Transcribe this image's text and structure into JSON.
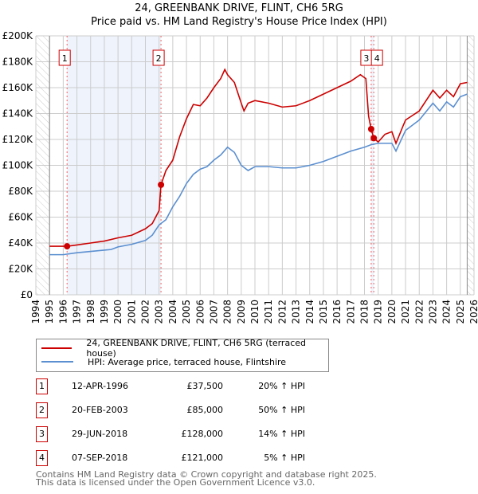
{
  "chart_data": {
    "type": "line",
    "title": "24, GREENBANK DRIVE, FLINT, CH6 5RG",
    "subtitle": "Price paid vs. HM Land Registry's House Price Index (HPI)",
    "xlim": [
      1994,
      2026
    ],
    "ylim": [
      0,
      200000
    ],
    "x_ticks": [
      "1994",
      "1995",
      "1996",
      "1997",
      "1998",
      "1999",
      "2000",
      "2001",
      "2002",
      "2003",
      "2004",
      "2005",
      "2006",
      "2007",
      "2008",
      "2009",
      "2010",
      "2011",
      "2012",
      "2013",
      "2014",
      "2015",
      "2016",
      "2017",
      "2018",
      "2019",
      "2020",
      "2021",
      "2022",
      "2023",
      "2024",
      "2025",
      "2026"
    ],
    "y_ticks": [
      "£0",
      "£20K",
      "£40K",
      "£60K",
      "£80K",
      "£100K",
      "£120K",
      "£140K",
      "£160K",
      "£180K",
      "£200K"
    ],
    "grid": true,
    "series": [
      {
        "name": "24, GREENBANK DRIVE, FLINT, CH6 5RG (terraced house)",
        "color": "#cc0000",
        "x": [
          1995,
          1996.28,
          1997,
          1998,
          1999,
          2000,
          2001,
          2002,
          2002.5,
          2003,
          2003.14,
          2003.5,
          2004,
          2004.5,
          2005,
          2005.5,
          2006,
          2006.5,
          2007,
          2007.5,
          2007.8,
          2008,
          2008.5,
          2009,
          2009.2,
          2009.5,
          2010,
          2011,
          2012,
          2013,
          2014,
          2015,
          2016,
          2017,
          2017.7,
          2018.1,
          2018.3,
          2018.49,
          2018.68,
          2019,
          2019.5,
          2020,
          2020.3,
          2020.8,
          2021,
          2022,
          2023,
          2023.5,
          2024,
          2024.5,
          2025,
          2025.5
        ],
        "y": [
          37500,
          37500,
          38500,
          40000,
          41500,
          44000,
          46000,
          51000,
          55000,
          65000,
          85000,
          96000,
          104000,
          122000,
          136000,
          147000,
          146000,
          152000,
          160000,
          167000,
          174000,
          170000,
          164000,
          148000,
          142000,
          148000,
          150000,
          148000,
          145000,
          146000,
          150000,
          155000,
          160000,
          165000,
          170000,
          167000,
          138000,
          128000,
          121000,
          118000,
          124000,
          126000,
          117000,
          130000,
          135000,
          142000,
          158000,
          152000,
          158000,
          153000,
          163000,
          164000
        ]
      },
      {
        "name": "HPI: Average price, terraced house, Flintshire",
        "color": "#5b8fd0",
        "x": [
          1995,
          1996,
          1997,
          1998,
          1999,
          1999.5,
          2000,
          2001,
          2002,
          2002.5,
          2003,
          2003.5,
          2004,
          2004.5,
          2005,
          2005.5,
          2006,
          2006.5,
          2007,
          2007.5,
          2008,
          2008.5,
          2009,
          2009.5,
          2010,
          2011,
          2012,
          2013,
          2014,
          2015,
          2016,
          2017,
          2018,
          2018.5,
          2019,
          2020,
          2020.3,
          2021,
          2022,
          2023,
          2023.5,
          2024,
          2024.5,
          2025,
          2025.5
        ],
        "y": [
          31000,
          31000,
          32500,
          33500,
          34500,
          35000,
          37000,
          39000,
          42000,
          46000,
          54000,
          58000,
          68000,
          76000,
          86000,
          93000,
          97000,
          99000,
          104000,
          108000,
          114000,
          110000,
          100000,
          96000,
          99000,
          99000,
          98000,
          98000,
          100000,
          103000,
          107000,
          111000,
          114000,
          116000,
          117000,
          117000,
          111000,
          127000,
          135000,
          148000,
          142000,
          149000,
          145000,
          153000,
          155000
        ]
      }
    ],
    "sales": [
      {
        "label": "1",
        "date": "12-APR-1996",
        "price": "£37,500",
        "hpi": "20% ↑ HPI",
        "x": 1996.28,
        "y": 37500
      },
      {
        "label": "2",
        "date": "20-FEB-2003",
        "price": "£85,000",
        "hpi": "50% ↑ HPI",
        "x": 2003.14,
        "y": 85000
      },
      {
        "label": "3",
        "date": "29-JUN-2018",
        "price": "£128,000",
        "hpi": "14% ↑ HPI",
        "x": 2018.49,
        "y": 128000
      },
      {
        "label": "4",
        "date": "07-SEP-2018",
        "price": "£121,000",
        "hpi": "5% ↑ HPI",
        "x": 2018.68,
        "y": 121000
      }
    ]
  },
  "legend": {
    "property": "24, GREENBANK DRIVE, FLINT, CH6 5RG (terraced house)",
    "hpi": "HPI: Average price, terraced house, Flintshire"
  },
  "footer": {
    "line1": "Contains HM Land Registry data © Crown copyright and database right 2025.",
    "line2": "This data is licensed under the Open Government Licence v3.0."
  }
}
